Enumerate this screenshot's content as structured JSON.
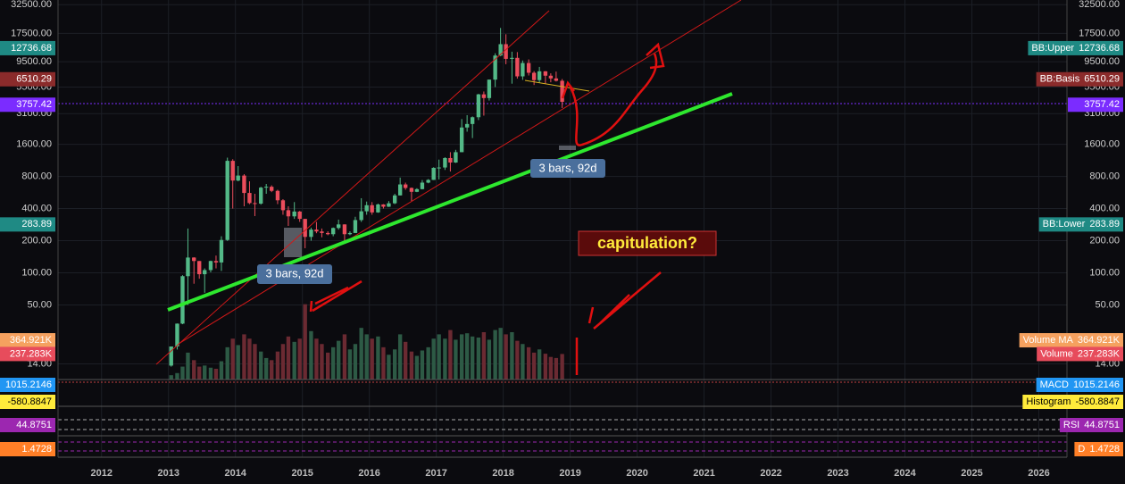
{
  "chart_data": {
    "type": "candlestick",
    "x": [
      2013.04,
      2013.13,
      2013.21,
      2013.29,
      2013.38,
      2013.46,
      2013.54,
      2013.63,
      2013.71,
      2013.79,
      2013.88,
      2013.96,
      2014.04,
      2014.13,
      2014.21,
      2014.29,
      2014.38,
      2014.46,
      2014.54,
      2014.63,
      2014.71,
      2014.79,
      2014.88,
      2014.96,
      2015.04,
      2015.13,
      2015.21,
      2015.29,
      2015.38,
      2015.46,
      2015.54,
      2015.63,
      2015.71,
      2015.79,
      2015.88,
      2015.96,
      2016.04,
      2016.13,
      2016.21,
      2016.29,
      2016.38,
      2016.46,
      2016.54,
      2016.63,
      2016.71,
      2016.79,
      2016.88,
      2016.96,
      2017.04,
      2017.13,
      2017.21,
      2017.29,
      2017.38,
      2017.46,
      2017.54,
      2017.63,
      2017.71,
      2017.79,
      2017.88,
      2017.96,
      2018.04,
      2018.13,
      2018.21,
      2018.29,
      2018.38,
      2018.46,
      2018.54,
      2018.63,
      2018.71,
      2018.79,
      2018.88
    ],
    "candles": [
      [
        13.5,
        20.4,
        13.2,
        20.4
      ],
      [
        20.4,
        33.5,
        19.1,
        33.4
      ],
      [
        33.4,
        95,
        33,
        93
      ],
      [
        93,
        260,
        50,
        139
      ],
      [
        139,
        140,
        79,
        129
      ],
      [
        129,
        129,
        88,
        97
      ],
      [
        97,
        110,
        65,
        106
      ],
      [
        106,
        130,
        101,
        129
      ],
      [
        129,
        145,
        110,
        125
      ],
      [
        125,
        220,
        104,
        203
      ],
      [
        203,
        1200,
        199,
        1120
      ],
      [
        1120,
        1160,
        400,
        732
      ],
      [
        732,
        1000,
        720,
        815
      ],
      [
        815,
        840,
        420,
        560
      ],
      [
        560,
        720,
        440,
        450
      ],
      [
        450,
        550,
        340,
        445
      ],
      [
        445,
        640,
        435,
        628
      ],
      [
        628,
        680,
        550,
        640
      ],
      [
        640,
        660,
        570,
        586
      ],
      [
        586,
        600,
        440,
        478
      ],
      [
        478,
        490,
        350,
        386
      ],
      [
        386,
        420,
        275,
        338
      ],
      [
        338,
        460,
        320,
        375
      ],
      [
        375,
        380,
        300,
        320
      ],
      [
        320,
        320,
        170,
        217
      ],
      [
        217,
        265,
        200,
        254
      ],
      [
        254,
        300,
        235,
        244
      ],
      [
        244,
        260,
        215,
        236
      ],
      [
        236,
        245,
        225,
        230
      ],
      [
        230,
        266,
        220,
        263
      ],
      [
        263,
        315,
        254,
        284
      ],
      [
        284,
        285,
        198,
        230
      ],
      [
        230,
        245,
        225,
        236
      ],
      [
        236,
        335,
        236,
        312
      ],
      [
        312,
        500,
        300,
        377
      ],
      [
        377,
        465,
        350,
        430
      ],
      [
        430,
        460,
        350,
        368
      ],
      [
        368,
        445,
        365,
        437
      ],
      [
        437,
        440,
        400,
        416
      ],
      [
        416,
        470,
        414,
        448
      ],
      [
        448,
        550,
        440,
        531
      ],
      [
        531,
        780,
        530,
        673
      ],
      [
        673,
        700,
        600,
        624
      ],
      [
        624,
        630,
        470,
        574
      ],
      [
        574,
        620,
        570,
        608
      ],
      [
        608,
        740,
        605,
        700
      ],
      [
        700,
        755,
        690,
        742
      ],
      [
        742,
        975,
        740,
        963
      ],
      [
        963,
        1150,
        750,
        970
      ],
      [
        970,
        1210,
        920,
        1190
      ],
      [
        1190,
        1350,
        890,
        1080
      ],
      [
        1080,
        1420,
        1070,
        1350
      ],
      [
        1350,
        2760,
        1350,
        2300
      ],
      [
        2300,
        3000,
        2100,
        2480
      ],
      [
        2480,
        2920,
        1830,
        2870
      ],
      [
        2870,
        4750,
        2700,
        4700
      ],
      [
        4700,
        5000,
        2970,
        4340
      ],
      [
        4340,
        6470,
        4110,
        6460
      ],
      [
        6460,
        11400,
        5500,
        10860
      ],
      [
        10860,
        19700,
        10700,
        13880
      ],
      [
        13880,
        17200,
        9000,
        10110
      ],
      [
        10110,
        11800,
        5920,
        10330
      ],
      [
        10330,
        11700,
        6600,
        6930
      ],
      [
        6930,
        9760,
        6430,
        9240
      ],
      [
        9240,
        9990,
        7060,
        7490
      ],
      [
        7490,
        7760,
        5750,
        6390
      ],
      [
        6390,
        8500,
        6070,
        7730
      ],
      [
        7730,
        7760,
        5880,
        7030
      ],
      [
        7030,
        7400,
        6100,
        6630
      ],
      [
        6630,
        7680,
        6200,
        6300
      ],
      [
        6300,
        6540,
        3500,
        4000
      ]
    ],
    "volume": [
      40000,
      60000,
      120000,
      250000,
      180000,
      120000,
      130000,
      110000,
      100000,
      170000,
      300000,
      380000,
      320000,
      420000,
      380000,
      330000,
      260000,
      200000,
      180000,
      260000,
      330000,
      400000,
      350000,
      380000,
      700000,
      450000,
      380000,
      330000,
      250000,
      300000,
      360000,
      420000,
      280000,
      330000,
      480000,
      420000,
      380000,
      400000,
      300000,
      230000,
      280000,
      420000,
      350000,
      260000,
      220000,
      270000,
      300000,
      380000,
      420000,
      380000,
      460000,
      370000,
      420000,
      430000,
      400000,
      390000,
      440000,
      370000,
      460000,
      480000,
      420000,
      440000,
      360000,
      330000,
      300000,
      250000,
      280000,
      240000,
      210000,
      200000,
      237283
    ],
    "colors": {
      "up": "#53b987",
      "down": "#eb4d5c",
      "volume_up": "#2d5a45",
      "volume_down": "#6b2a32"
    },
    "log_scale": true,
    "grid": true,
    "ylim": [
      10,
      36000
    ],
    "yticks": [
      {
        "value": 32500,
        "label": "32500.00"
      },
      {
        "value": 17500,
        "label": "17500.00"
      },
      {
        "value": 9500,
        "label": "9500.00"
      },
      {
        "value": 5500,
        "label": "5500.00"
      },
      {
        "value": 3100,
        "label": "3100.00"
      },
      {
        "value": 1600,
        "label": "1600.00"
      },
      {
        "value": 800,
        "label": "800.00"
      },
      {
        "value": 400,
        "label": "400.00"
      },
      {
        "value": 200,
        "label": "200.00"
      },
      {
        "value": 100,
        "label": "100.00"
      },
      {
        "value": 50,
        "label": "50.00"
      },
      {
        "value": 14,
        "label": "14.00"
      }
    ],
    "xlim": [
      2011.35,
      2026.42
    ],
    "xticks": [
      2012,
      2013,
      2014,
      2015,
      2016,
      2017,
      2018,
      2019,
      2020,
      2021,
      2022,
      2023,
      2024,
      2025,
      2026
    ],
    "indicators": [
      {
        "name": "BB:Upper",
        "value": 12736.68,
        "color": "#1f8a84"
      },
      {
        "name": "BB:Basis",
        "value": 6510.29,
        "color": "#8b2b2b"
      },
      {
        "name": null,
        "value": 3757.42,
        "color": "#7b2cff"
      },
      {
        "name": "BB:Lower",
        "value": 283.89,
        "color": "#1f8a84"
      },
      {
        "name": "Volume MA",
        "value": 364921,
        "label": "364.921K",
        "color": "#f5a15f"
      },
      {
        "name": "Volume",
        "value": 237283,
        "label": "237.283K",
        "color": "#e74c5c"
      },
      {
        "name": "MACD",
        "value": 1015.2146,
        "color": "#2196f3"
      },
      {
        "name": "Histogram",
        "value": -580.8847,
        "color": "#ffeb3b"
      },
      {
        "name": "RSI",
        "value": 44.8751,
        "color": "#9c27b0"
      },
      {
        "name": "D",
        "value": 1.4728,
        "color": "#ff7f27"
      }
    ],
    "annotations": [
      "3 bars, 92d",
      "3 bars, 92d",
      "capitulation?"
    ]
  }
}
